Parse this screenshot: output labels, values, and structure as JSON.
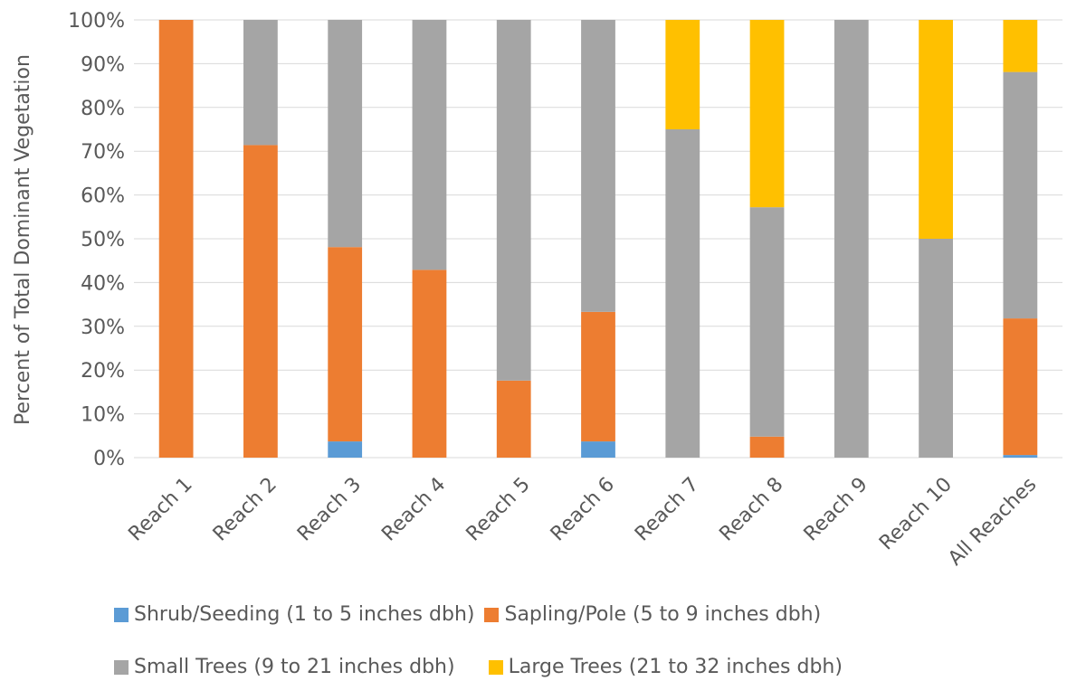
{
  "chart_data": {
    "type": "bar",
    "stacked": true,
    "percent_stacked": true,
    "categories": [
      "Reach 1",
      "Reach 2",
      "Reach 3",
      "Reach 4",
      "Reach 5",
      "Reach 6",
      "Reach 7",
      "Reach 8",
      "Reach 9",
      "Reach 10",
      "All Reaches"
    ],
    "series": [
      {
        "name": "Shrub/Seeding (1 to 5 inches dbh)",
        "color": "#5B9BD5",
        "values": [
          0,
          0,
          3.7,
          0,
          0,
          3.7,
          0,
          0,
          0,
          0,
          0.6
        ]
      },
      {
        "name": "Sapling/Pole (5 to 9 inches dbh)",
        "color": "#ED7D31",
        "values": [
          100,
          71.4,
          44.4,
          42.9,
          17.6,
          29.6,
          0,
          4.8,
          0,
          0,
          31.2
        ]
      },
      {
        "name": "Small Trees (9 to 21 inches dbh)",
        "color": "#A5A5A5",
        "values": [
          0,
          28.6,
          51.9,
          57.1,
          82.4,
          66.7,
          75,
          52.4,
          100,
          50,
          56.3
        ]
      },
      {
        "name": "Large Trees (21 to 32 inches dbh)",
        "color": "#FFC000",
        "values": [
          0,
          0,
          0,
          0,
          0,
          0,
          25,
          42.8,
          0,
          50,
          11.9
        ]
      }
    ],
    "ylabel": "Percent of Total Dominant Vegetation",
    "xlabel": "",
    "ylim": [
      0,
      100
    ],
    "yticks": [
      "0%",
      "10%",
      "20%",
      "30%",
      "40%",
      "50%",
      "60%",
      "70%",
      "80%",
      "90%",
      "100%"
    ],
    "grid": true,
    "legend_position": "bottom"
  }
}
